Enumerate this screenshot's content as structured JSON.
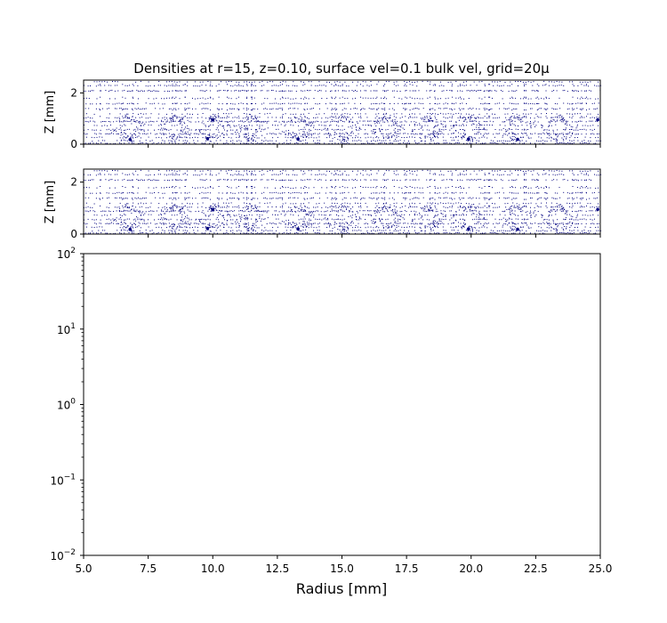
{
  "chart_data": [
    {
      "type": "scatter",
      "title": "Densities at r=15, z=0.10, surface vel=0.1 bulk vel, grid=20μ",
      "xlabel": "",
      "ylabel": "Z [mm]",
      "xlim": [
        5.0,
        25.0
      ],
      "ylim": [
        0,
        2.5
      ],
      "yticks": [
        "0",
        "2"
      ],
      "xticks_labeled": false,
      "grid": false,
      "point_color": "#00007f",
      "pattern": {
        "dot_rows_z": [
          0.05,
          0.15,
          0.28,
          0.42,
          0.58,
          0.75,
          0.9,
          1.05,
          1.2,
          1.4,
          1.6,
          1.8,
          2.1,
          2.3,
          2.45
        ],
        "ring_centers_r": [
          6.7,
          8.5,
          10.0,
          11.5,
          13.3,
          15.0,
          16.7,
          18.3,
          19.9,
          21.8,
          23.4
        ],
        "large_dots": [
          [
            6.8,
            0.18
          ],
          [
            9.8,
            0.22
          ],
          [
            13.3,
            0.2
          ],
          [
            19.9,
            0.2
          ],
          [
            21.8,
            0.19
          ],
          [
            10.0,
            0.95
          ],
          [
            24.9,
            0.95
          ]
        ]
      }
    },
    {
      "type": "scatter",
      "title": "",
      "xlabel": "",
      "ylabel": "Z [mm]",
      "xlim": [
        5.0,
        25.0
      ],
      "ylim": [
        0,
        2.5
      ],
      "yticks": [
        "0",
        "2"
      ],
      "xticks_labeled": false,
      "grid": false,
      "point_color": "#00007f",
      "pattern": {
        "dot_rows_z": [
          0.05,
          0.15,
          0.28,
          0.42,
          0.58,
          0.75,
          0.9,
          1.05,
          1.2,
          1.4,
          1.6,
          1.8,
          2.1,
          2.3,
          2.45
        ],
        "ring_centers_r": [
          6.7,
          8.5,
          10.0,
          11.5,
          13.3,
          15.0,
          16.7,
          18.3,
          19.9,
          21.8,
          23.4
        ],
        "large_dots": [
          [
            6.8,
            0.18
          ],
          [
            9.8,
            0.22
          ],
          [
            13.3,
            0.2
          ],
          [
            19.9,
            0.2
          ],
          [
            21.8,
            0.19
          ],
          [
            10.0,
            0.95
          ],
          [
            24.9,
            0.95
          ]
        ]
      }
    },
    {
      "type": "line",
      "title": "",
      "xlabel": "Radius [mm]",
      "ylabel": "",
      "xlim": [
        5.0,
        25.0
      ],
      "ylim": [
        0.01,
        100
      ],
      "yscale": "log",
      "xticks": [
        "5.0",
        "7.5",
        "10.0",
        "12.5",
        "15.0",
        "17.5",
        "20.0",
        "22.5",
        "25.0"
      ],
      "yticks": [
        {
          "base": "10",
          "exp": "−2"
        },
        {
          "base": "10",
          "exp": "−1"
        },
        {
          "base": "10",
          "exp": "0"
        },
        {
          "base": "10",
          "exp": "1"
        },
        {
          "base": "10",
          "exp": "2"
        }
      ],
      "series": [],
      "grid": false
    }
  ]
}
